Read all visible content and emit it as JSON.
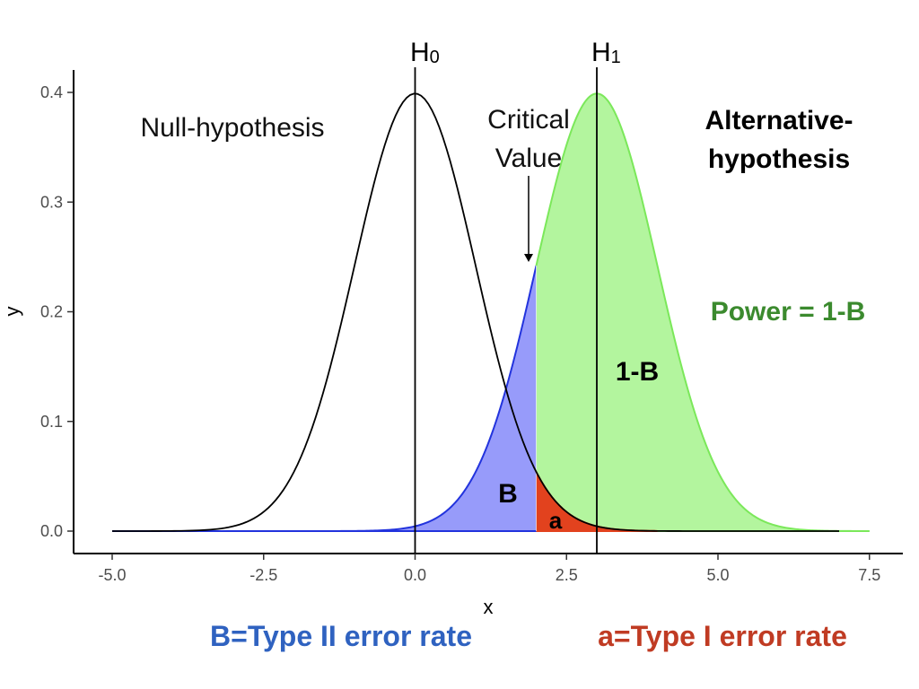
{
  "chart_data": {
    "type": "area",
    "xlabel": "x",
    "ylabel": "y",
    "xlim": [
      -5,
      7.5
    ],
    "ylim": [
      0,
      0.4
    ],
    "x_ticks": [
      "-5.0",
      "-2.5",
      "0.0",
      "2.5",
      "5.0",
      "7.5"
    ],
    "y_ticks": [
      "0.0",
      "0.1",
      "0.2",
      "0.3",
      "0.4"
    ],
    "grid": false,
    "series": [
      {
        "name": "Null-hypothesis",
        "mean": 0,
        "sd": 1,
        "x_range": [
          -5,
          7
        ],
        "color": "#000000"
      },
      {
        "name": "Alternative-hypothesis",
        "mean": 3,
        "sd": 1,
        "x_range": [
          -5,
          7.5
        ],
        "color": "#7be85a"
      }
    ],
    "critical_value": 2,
    "regions": [
      {
        "label": "B",
        "range": [
          -5,
          2
        ],
        "curve": "Alternative-hypothesis",
        "color": "#979bfa",
        "edge": "#2233dd"
      },
      {
        "label": "1-B",
        "range": [
          2,
          7.5
        ],
        "curve": "Alternative-hypothesis",
        "color": "#b3f59e",
        "edge": "#7be85a"
      },
      {
        "label": "a",
        "range": [
          2,
          4
        ],
        "curve": "Null-hypothesis",
        "color": "#e2421e",
        "edge": "#e2421e"
      }
    ],
    "vlines": [
      {
        "x": 0,
        "label": "H0"
      },
      {
        "x": 3,
        "label": "H1"
      }
    ],
    "annotations": {
      "null": "Null-hypothesis",
      "alt_line1": "Alternative-",
      "alt_line2": "hypothesis",
      "critical_line1": "Critical",
      "critical_line2": "Value",
      "power": "Power = 1-B",
      "one_minus_b": "1-B",
      "b": "B",
      "a": "a"
    },
    "footer": {
      "type2": "B=Type II error rate",
      "type1": "a=Type I error rate",
      "type2_color": "#2f62c0",
      "type1_color": "#c03b23"
    },
    "power_color": "#3b8a2e"
  }
}
